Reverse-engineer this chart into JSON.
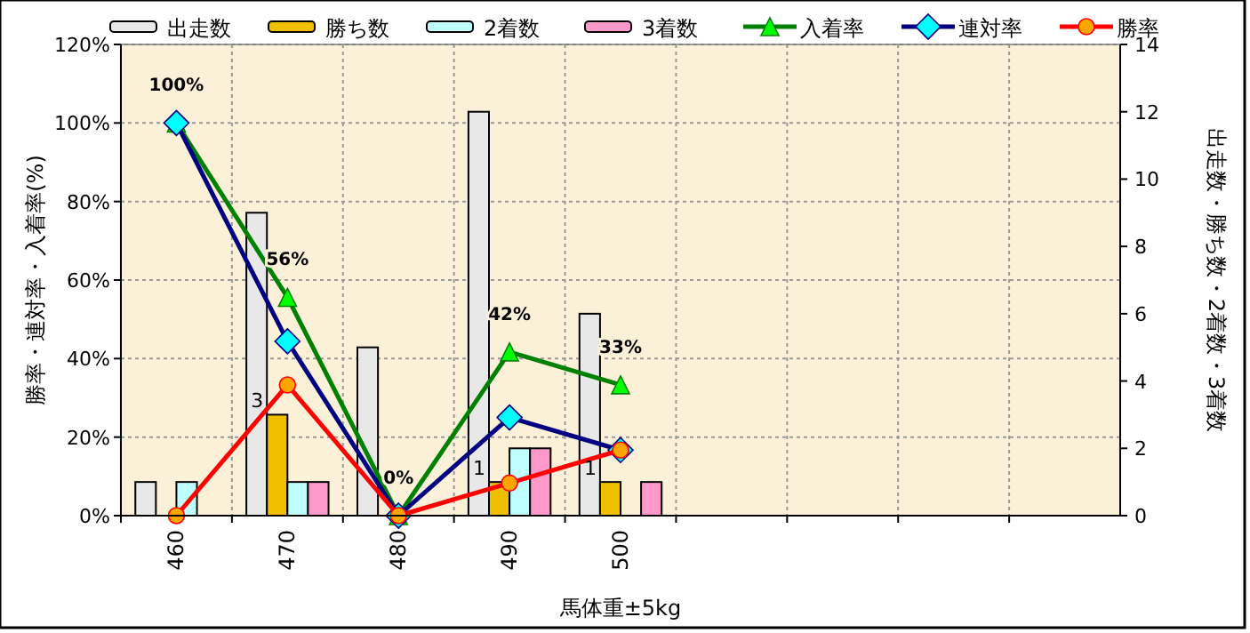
{
  "chart_data": {
    "type": "bar",
    "xlabel": "馬体重±5kg",
    "ylabel": "勝率・連対率・入着率(%)",
    "y2label": "出走数・勝ち数・2着数・3着数",
    "categories": [
      "460",
      "470",
      "480",
      "490",
      "500",
      null,
      null,
      null,
      null
    ],
    "series": [
      {
        "name": "出走数",
        "axis": "y2",
        "color": "#e8e8e8",
        "values": [
          1,
          9,
          5,
          12,
          6,
          null,
          null,
          null,
          null
        ]
      },
      {
        "name": "勝ち数",
        "axis": "y2",
        "color": "#f0c000",
        "values": [
          0,
          3,
          0,
          1,
          1,
          null,
          null,
          null,
          null
        ],
        "value_labels": [
          null,
          "3",
          null,
          "1",
          "1",
          null,
          null,
          null,
          null
        ]
      },
      {
        "name": "2着数",
        "axis": "y2",
        "color": "#c0ffff",
        "values": [
          1,
          1,
          0,
          2,
          0,
          null,
          null,
          null,
          null
        ]
      },
      {
        "name": "3着数",
        "axis": "y2",
        "color": "#ff99cc",
        "values": [
          0,
          1,
          0,
          2,
          1,
          null,
          null,
          null,
          null
        ]
      },
      {
        "name": "入着率",
        "type": "line",
        "color": "#008000",
        "marker": "triangle",
        "values": [
          100,
          55.6,
          0,
          41.7,
          33.3,
          null,
          null,
          null,
          null
        ],
        "value_labels": [
          "100%",
          "56%",
          "0%",
          "42%",
          "33%",
          null,
          null,
          null,
          null
        ]
      },
      {
        "name": "連対率",
        "type": "line",
        "color": "#000080",
        "marker": "diamond",
        "values": [
          100,
          44.4,
          0,
          25,
          16.7,
          null,
          null,
          null,
          null
        ]
      },
      {
        "name": "勝率",
        "type": "line",
        "color": "#ff0000",
        "marker": "circle",
        "values": [
          0,
          33.3,
          0,
          8.3,
          16.7,
          null,
          null,
          null,
          null
        ]
      }
    ],
    "ylim": [
      0,
      120
    ],
    "yticks": [
      {
        "value": 0,
        "label": "0%"
      },
      {
        "value": 20,
        "label": "20%"
      },
      {
        "value": 40,
        "label": "40%"
      },
      {
        "value": 60,
        "label": "60%"
      },
      {
        "value": 80,
        "label": "80%"
      },
      {
        "value": 100,
        "label": "100%"
      },
      {
        "value": 120,
        "label": "120%"
      }
    ],
    "y2lim": [
      0,
      14
    ],
    "y2ticks": [
      0,
      2,
      4,
      6,
      8,
      10,
      12,
      14
    ],
    "grid": true,
    "legend": "top"
  }
}
